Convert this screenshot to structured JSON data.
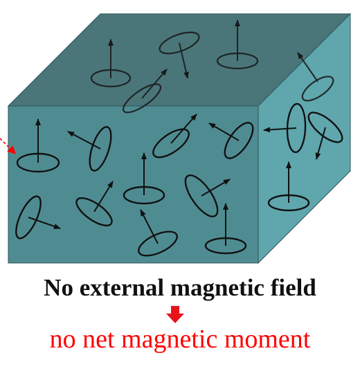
{
  "colors": {
    "top_face": "#4a7679",
    "front_face": "#4f8c92",
    "side_face": "#5fa6ad",
    "outline": "#2f5558",
    "spin": "#111111",
    "arrow_down": "#e8141c",
    "highlight": "#ff0000"
  },
  "caption": {
    "condition": "No external magnetic field",
    "result": "no net magnetic moment",
    "condition_color": "#111111",
    "result_color": "#ff0000"
  },
  "icons": {
    "spin": "magnetic-dipole-icon",
    "result_arrow": "arrow-down-icon",
    "pointer": "red-pointer-icon"
  }
}
